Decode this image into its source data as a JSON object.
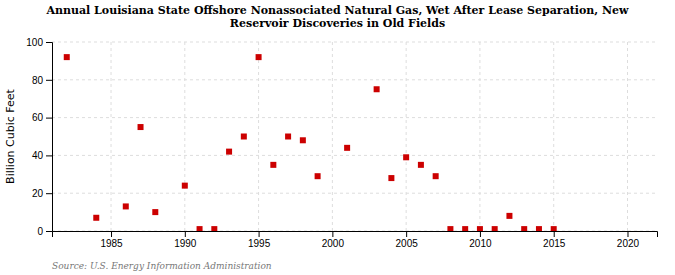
{
  "chart_data": {
    "type": "scatter",
    "title": "Annual Louisiana State Offshore Nonassociated Natural Gas, Wet After Lease Separation, New\nReservoir Discoveries in Old Fields",
    "ylabel": "Billion Cubic Feet",
    "source": "Source: U.S. Energy Information Administration",
    "x": [
      1982,
      1984,
      1986,
      1987,
      1988,
      1990,
      1991,
      1992,
      1993,
      1994,
      1995,
      1996,
      1997,
      1998,
      1999,
      2001,
      2003,
      2004,
      2005,
      2006,
      2007,
      2008,
      2009,
      2010,
      2011,
      2012,
      2013,
      2014,
      2015
    ],
    "values": [
      92,
      7,
      13,
      55,
      10,
      24,
      1,
      1,
      42,
      50,
      92,
      35,
      50,
      48,
      29,
      44,
      75,
      28,
      39,
      35,
      29,
      1,
      1,
      1,
      1,
      8,
      1,
      1,
      1
    ],
    "color": "#cc0000",
    "marker": "square",
    "xlim": [
      1981,
      2022
    ],
    "ylim": [
      0,
      100
    ],
    "xticks": [
      1985,
      1990,
      1995,
      2000,
      2005,
      2010,
      2015,
      2020
    ],
    "yticks": [
      0,
      20,
      40,
      60,
      80,
      100
    ],
    "grid": true
  }
}
